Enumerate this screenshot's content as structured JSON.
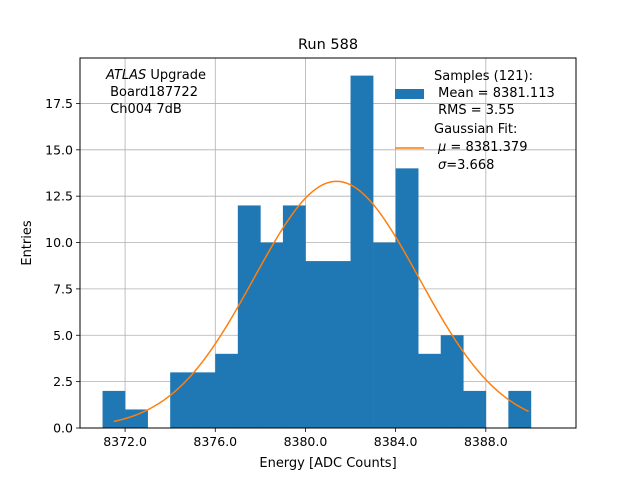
{
  "chart_data": {
    "type": "histogram",
    "title": "Run 588",
    "xlabel": "Energy [ADC Counts]",
    "ylabel": "Entries",
    "xlim": [
      8370.0,
      8392.0
    ],
    "ylim": [
      0,
      19.95
    ],
    "xticks": [
      8372.0,
      8376.0,
      8380.0,
      8384.0,
      8388.0
    ],
    "xtick_labels": [
      "8372.0",
      "8376.0",
      "8380.0",
      "8384.0",
      "8388.0"
    ],
    "yticks": [
      0,
      2.5,
      5,
      7.5,
      10,
      12.5,
      15,
      17.5
    ],
    "ytick_labels": [
      "0.0",
      "2.5",
      "5.0",
      "7.5",
      "10.0",
      "12.5",
      "15.0",
      "17.5"
    ],
    "grid": true,
    "bar_color": "#1f77b4",
    "fit_color": "#ff7f0e",
    "bins": [
      {
        "x0": 8371.0,
        "x1": 8372.0,
        "count": 2
      },
      {
        "x0": 8372.0,
        "x1": 8373.0,
        "count": 1
      },
      {
        "x0": 8373.0,
        "x1": 8374.0,
        "count": 0
      },
      {
        "x0": 8374.0,
        "x1": 8375.0,
        "count": 3
      },
      {
        "x0": 8375.0,
        "x1": 8376.0,
        "count": 3
      },
      {
        "x0": 8376.0,
        "x1": 8377.0,
        "count": 4
      },
      {
        "x0": 8377.0,
        "x1": 8378.0,
        "count": 12
      },
      {
        "x0": 8378.0,
        "x1": 8379.0,
        "count": 10
      },
      {
        "x0": 8379.0,
        "x1": 8380.0,
        "count": 12
      },
      {
        "x0": 8380.0,
        "x1": 8381.0,
        "count": 9
      },
      {
        "x0": 8381.0,
        "x1": 8382.0,
        "count": 9
      },
      {
        "x0": 8382.0,
        "x1": 8383.0,
        "count": 19
      },
      {
        "x0": 8383.0,
        "x1": 8384.0,
        "count": 10
      },
      {
        "x0": 8384.0,
        "x1": 8385.0,
        "count": 14
      },
      {
        "x0": 8385.0,
        "x1": 8386.0,
        "count": 4
      },
      {
        "x0": 8386.0,
        "x1": 8387.0,
        "count": 5
      },
      {
        "x0": 8387.0,
        "x1": 8388.0,
        "count": 2
      },
      {
        "x0": 8388.0,
        "x1": 8389.0,
        "count": 0
      },
      {
        "x0": 8389.0,
        "x1": 8390.0,
        "count": 2
      }
    ],
    "fit": {
      "mu": 8381.379,
      "sigma": 3.668,
      "amplitude": 13.3,
      "x_range": [
        8371.5,
        8389.9
      ]
    },
    "annotation": {
      "line1_italic": "ATLAS",
      "line1_rest": " Upgrade",
      "line2": " Board187722",
      "line3": " Ch004 7dB"
    },
    "legend": {
      "placement": "top-right",
      "samples_line1": "Samples (121):",
      "samples_line2": " Mean = 8381.113",
      "samples_line3": " RMS = 3.55",
      "fit_line1": "Gaussian Fit:",
      "fit_line2_sym": "μ",
      "fit_line2_rest": " = 8381.379",
      "fit_line3_sym": "σ",
      "fit_line3_rest": "=3.668"
    }
  }
}
